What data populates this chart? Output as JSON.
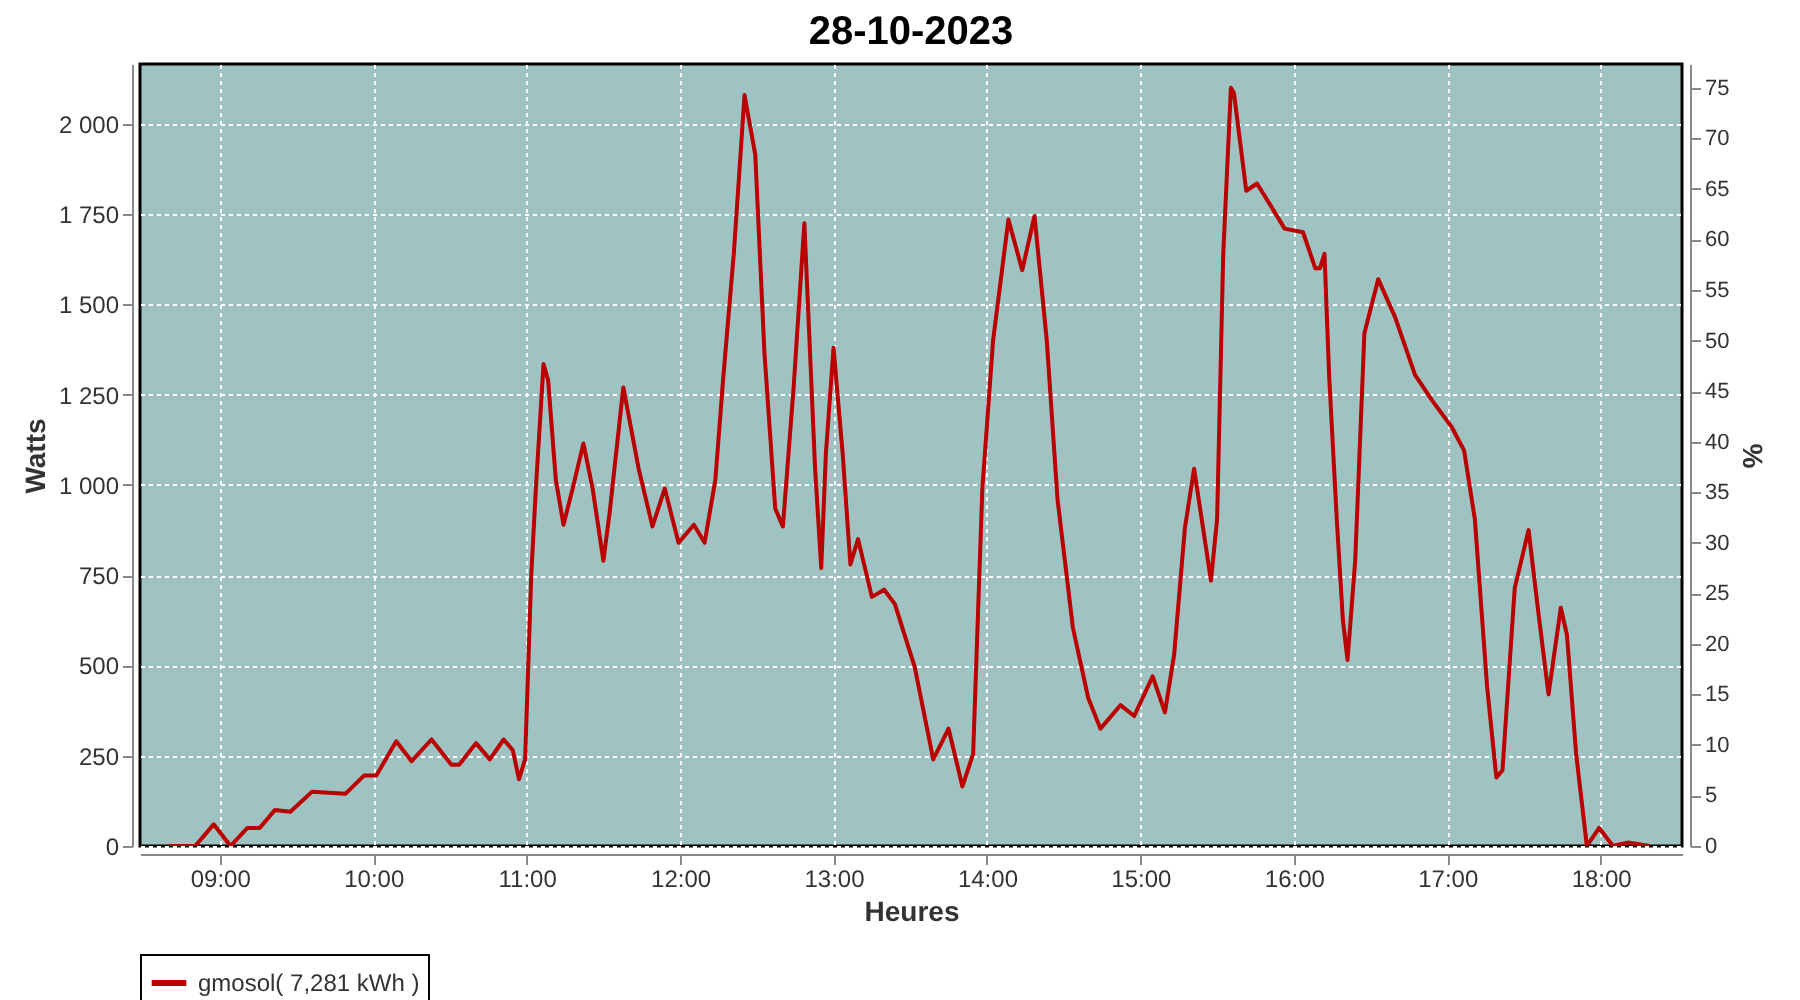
{
  "chart_data": {
    "type": "line",
    "title": "28-10-2023",
    "xlabel": "Heures",
    "ylabel": "Watts",
    "y2label": "%",
    "xlim": [
      8.48,
      18.53
    ],
    "xticks": [
      {
        "value": 9,
        "label": "09:00"
      },
      {
        "value": 10,
        "label": "10:00"
      },
      {
        "value": 11,
        "label": "11:00"
      },
      {
        "value": 12,
        "label": "12:00"
      },
      {
        "value": 13,
        "label": "13:00"
      },
      {
        "value": 14,
        "label": "14:00"
      },
      {
        "value": 15,
        "label": "15:00"
      },
      {
        "value": 16,
        "label": "16:00"
      },
      {
        "value": 17,
        "label": "17:00"
      },
      {
        "value": 18,
        "label": "18:00"
      }
    ],
    "ylim": [
      0,
      2166
    ],
    "yticks": [
      0,
      250,
      500,
      750,
      {
        "value": 1000,
        "label": "1 000"
      },
      {
        "value": 1250,
        "label": "1 250"
      },
      {
        "value": 1500,
        "label": "1 500"
      },
      {
        "value": 1750,
        "label": "1 750"
      },
      {
        "value": 2000,
        "label": "2 000"
      }
    ],
    "y2lim": [
      0,
      77.35
    ],
    "y2ticks": [
      0,
      5,
      10,
      15,
      20,
      25,
      30,
      35,
      40,
      45,
      50,
      55,
      60,
      65,
      70,
      75
    ],
    "grid": true,
    "legend": "bottom",
    "marker": "none",
    "line_style": "solid",
    "series": [
      {
        "name": "gmosol( 7,281 kWh )",
        "color": "#bb0000",
        "x": [
          8.67,
          8.84,
          8.96,
          9.07,
          9.18,
          9.26,
          9.36,
          9.46,
          9.6,
          9.82,
          9.94,
          10.02,
          10.15,
          10.25,
          10.38,
          10.51,
          10.56,
          10.67,
          10.76,
          10.85,
          10.91,
          10.95,
          10.99,
          11.03,
          11.06,
          11.11,
          11.14,
          11.19,
          11.24,
          11.3,
          11.37,
          11.43,
          11.5,
          11.54,
          11.63,
          11.73,
          11.82,
          11.9,
          11.99,
          12.09,
          12.16,
          12.23,
          12.28,
          12.35,
          12.42,
          12.49,
          12.55,
          12.62,
          12.67,
          12.74,
          12.81,
          12.88,
          12.92,
          12.95,
          13.0,
          13.06,
          13.11,
          13.16,
          13.25,
          13.33,
          13.4,
          13.53,
          13.65,
          13.75,
          13.84,
          13.91,
          13.97,
          14.04,
          14.14,
          14.23,
          14.31,
          14.39,
          14.46,
          14.56,
          14.66,
          14.74,
          14.87,
          14.96,
          15.08,
          15.16,
          15.22,
          15.29,
          15.35,
          15.46,
          15.5,
          15.54,
          15.59,
          15.61,
          15.69,
          15.76,
          15.84,
          15.94,
          16.06,
          16.14,
          16.17,
          16.2,
          16.23,
          16.28,
          16.32,
          16.35,
          16.4,
          16.46,
          16.55,
          16.66,
          16.79,
          16.9,
          17.03,
          17.11,
          17.18,
          17.26,
          17.32,
          17.36,
          17.44,
          17.53,
          17.59,
          17.66,
          17.74,
          17.78,
          17.84,
          17.91,
          17.99,
          18.08,
          18.18,
          18.32
        ],
        "values": [
          0,
          0,
          60,
          0,
          50,
          50,
          100,
          95,
          150,
          145,
          195,
          195,
          290,
          235,
          295,
          225,
          225,
          285,
          240,
          295,
          265,
          185,
          240,
          750,
          990,
          1335,
          1290,
          1015,
          890,
          990,
          1115,
          990,
          790,
          920,
          1270,
          1045,
          885,
          990,
          840,
          890,
          840,
          1015,
          1290,
          1640,
          2080,
          1915,
          1365,
          935,
          885,
          1270,
          1725,
          1045,
          770,
          1085,
          1380,
          1085,
          780,
          850,
          690,
          710,
          670,
          495,
          240,
          325,
          165,
          255,
          990,
          1400,
          1735,
          1595,
          1745,
          1400,
          960,
          605,
          410,
          325,
          390,
          360,
          470,
          370,
          530,
          880,
          1045,
          735,
          905,
          1640,
          2100,
          2085,
          1815,
          1835,
          1780,
          1710,
          1700,
          1600,
          1600,
          1640,
          1305,
          905,
          625,
          515,
          790,
          1420,
          1570,
          1465,
          1305,
          1235,
          1160,
          1095,
          905,
          440,
          190,
          210,
          715,
          875,
          660,
          420,
          660,
          585,
          255,
          0,
          50,
          0,
          10,
          0
        ]
      }
    ]
  }
}
